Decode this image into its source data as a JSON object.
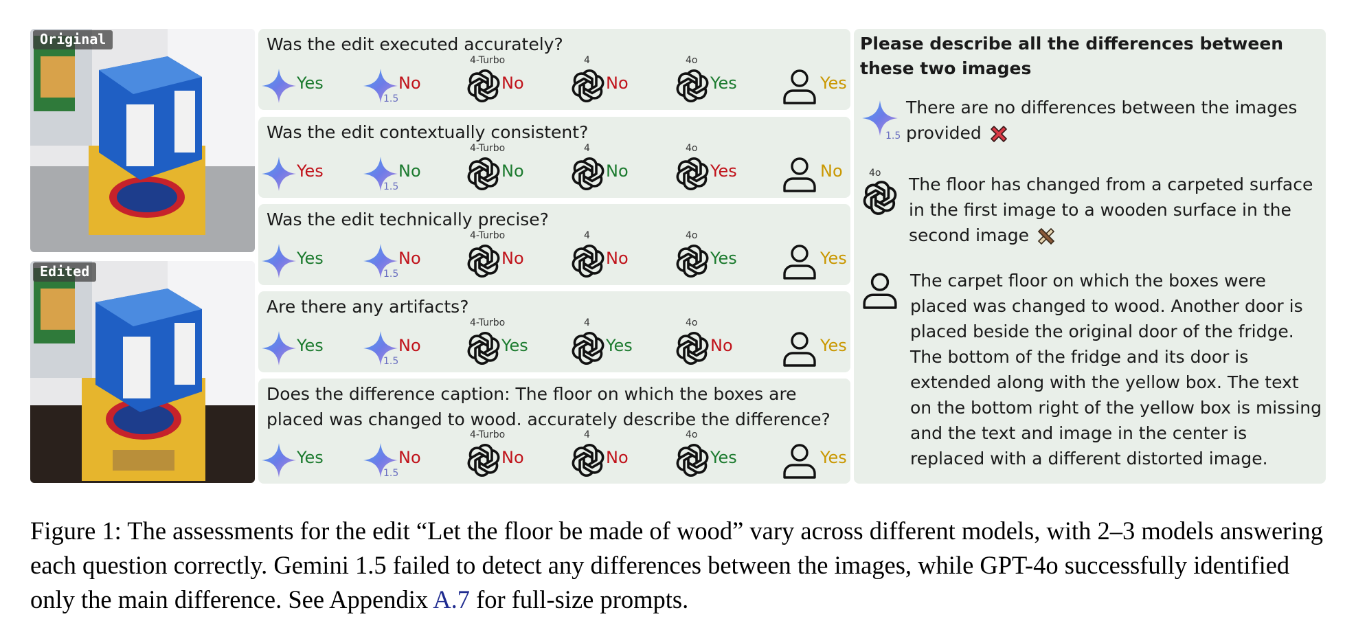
{
  "images": {
    "original_label": "Original",
    "edited_label": "Edited"
  },
  "questions": [
    {
      "text": "Was the edit executed accurately?",
      "answers": [
        {
          "model": "gemini",
          "version": "",
          "answer": "Yes"
        },
        {
          "model": "gemini",
          "version": "1.5",
          "answer": "No"
        },
        {
          "model": "gpt",
          "version": "4-Turbo",
          "answer": "No"
        },
        {
          "model": "gpt",
          "version": "4",
          "answer": "No"
        },
        {
          "model": "gpt",
          "version": "4o",
          "answer": "Yes"
        },
        {
          "model": "human",
          "version": "",
          "answer": "Yes"
        }
      ]
    },
    {
      "text": "Was the edit contextually consistent?",
      "answers": [
        {
          "model": "gemini",
          "version": "",
          "answer": "Yes"
        },
        {
          "model": "gemini",
          "version": "1.5",
          "answer": "No"
        },
        {
          "model": "gpt",
          "version": "4-Turbo",
          "answer": "No"
        },
        {
          "model": "gpt",
          "version": "4",
          "answer": "No"
        },
        {
          "model": "gpt",
          "version": "4o",
          "answer": "Yes"
        },
        {
          "model": "human",
          "version": "",
          "answer": "No"
        }
      ]
    },
    {
      "text": "Was the edit technically precise?",
      "answers": [
        {
          "model": "gemini",
          "version": "",
          "answer": "Yes"
        },
        {
          "model": "gemini",
          "version": "1.5",
          "answer": "No"
        },
        {
          "model": "gpt",
          "version": "4-Turbo",
          "answer": "No"
        },
        {
          "model": "gpt",
          "version": "4",
          "answer": "No"
        },
        {
          "model": "gpt",
          "version": "4o",
          "answer": "Yes"
        },
        {
          "model": "human",
          "version": "",
          "answer": "Yes"
        }
      ]
    },
    {
      "text": "Are there any artifacts?",
      "answers": [
        {
          "model": "gemini",
          "version": "",
          "answer": "Yes"
        },
        {
          "model": "gemini",
          "version": "1.5",
          "answer": "No"
        },
        {
          "model": "gpt",
          "version": "4-Turbo",
          "answer": "Yes"
        },
        {
          "model": "gpt",
          "version": "4",
          "answer": "Yes"
        },
        {
          "model": "gpt",
          "version": "4o",
          "answer": "No"
        },
        {
          "model": "human",
          "version": "",
          "answer": "Yes"
        }
      ]
    },
    {
      "text": "Does the difference caption: The floor on which the boxes are placed was changed to wood. accurately describe the difference?",
      "answers": [
        {
          "model": "gemini",
          "version": "",
          "answer": "Yes"
        },
        {
          "model": "gemini",
          "version": "1.5",
          "answer": "No"
        },
        {
          "model": "gpt",
          "version": "4-Turbo",
          "answer": "No"
        },
        {
          "model": "gpt",
          "version": "4",
          "answer": "No"
        },
        {
          "model": "gpt",
          "version": "4o",
          "answer": "Yes"
        },
        {
          "model": "human",
          "version": "",
          "answer": "Yes"
        }
      ]
    }
  ],
  "answer_colors": {
    "q1": [
      "green",
      "red",
      "red",
      "red",
      "green",
      "gold"
    ],
    "q2": [
      "red",
      "green",
      "green",
      "green",
      "red",
      "gold"
    ],
    "q3": [
      "green",
      "red",
      "red",
      "red",
      "green",
      "gold"
    ],
    "q4": [
      "green",
      "red",
      "green",
      "green",
      "red",
      "gold"
    ],
    "q5": [
      "green",
      "red",
      "red",
      "red",
      "green",
      "gold"
    ]
  },
  "differences": {
    "prompt": "Please describe all the differences between these two images",
    "gemini": {
      "version": "1.5",
      "text": "There are no differences between the images provided",
      "verdict_icon": "red-cross-icon"
    },
    "gpt4o": {
      "version": "4o",
      "text": "The floor has changed from a carpeted surface in the first image to a wooden surface in the second image",
      "verdict_icon": "partial-cross-icon"
    },
    "human": {
      "text": "The carpet floor on which the boxes were placed was changed to wood. Another door is placed beside the original door of the fridge. The bottom of the fridge and its door is extended along with the yellow box. The text on the bottom right of the yellow box is missing and the text and image in the center is replaced with a different distorted image."
    }
  },
  "caption": {
    "text_before": "Figure 1: The assessments for the edit “Let the floor be made of wood” vary across different models, with 2–3 models answering each question correctly. Gemini 1.5 failed to detect any differences between the images, while GPT-4o successfully identified only the main difference. See Appendix ",
    "link": "A.7",
    "text_after": " for full-size prompts."
  },
  "colors": {
    "panel": "#e9efe9",
    "yes_green": "#1b7a2e",
    "no_red": "#c0121a",
    "human_gold": "#c99700",
    "link": "#1f2b8f"
  }
}
